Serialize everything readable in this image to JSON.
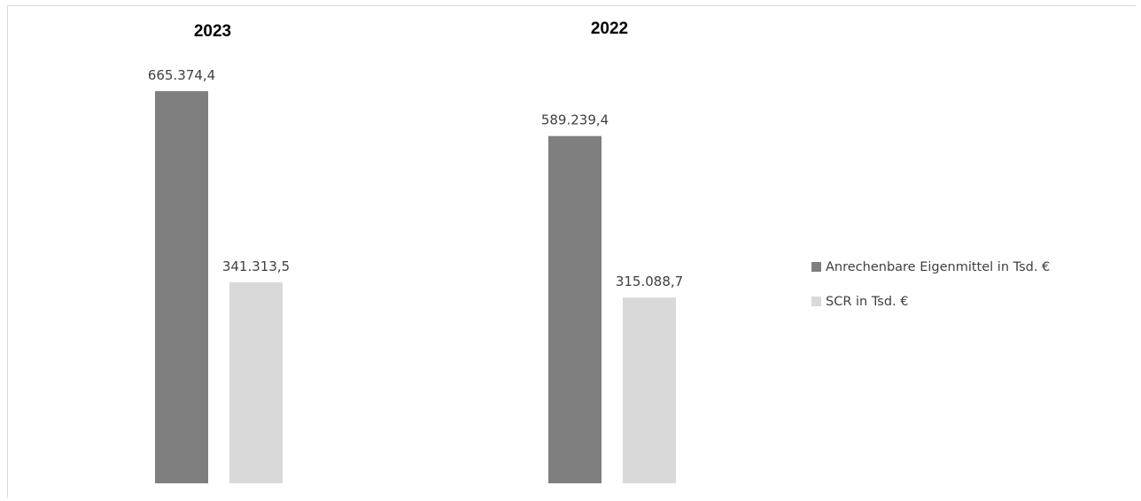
{
  "chart_data": {
    "type": "bar",
    "panels": [
      {
        "title": "2023",
        "values": [
          665374.4,
          341313.5
        ],
        "labels": [
          "665.374,4",
          "341.313,5"
        ]
      },
      {
        "title": "2022",
        "values": [
          589239.4,
          315088.7
        ],
        "labels": [
          "589.239,4",
          "315.088,7"
        ]
      }
    ],
    "series": [
      {
        "name": "Anrechenbare Eigenmittel in Tsd. €",
        "color": "#7f7f7f"
      },
      {
        "name": "SCR in Tsd. €",
        "color": "#d9d9d9"
      }
    ],
    "ylim": [
      0,
      665374.4
    ],
    "grid": false,
    "legend_position": "right"
  }
}
